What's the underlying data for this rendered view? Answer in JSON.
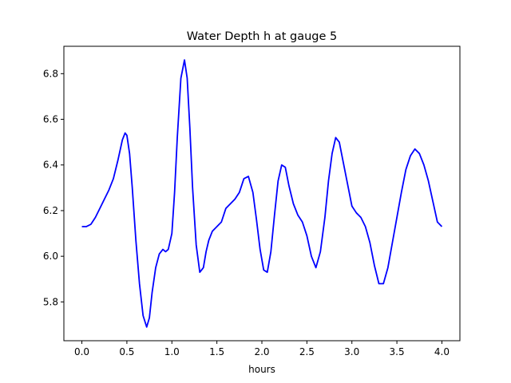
{
  "chart_data": {
    "type": "line",
    "title": "Water Depth h at gauge 5",
    "xlabel": "hours",
    "ylabel": "",
    "xlim": [
      -0.2,
      4.2
    ],
    "ylim": [
      5.63,
      6.92
    ],
    "xticks": [
      0.0,
      0.5,
      1.0,
      1.5,
      2.0,
      2.5,
      3.0,
      3.5,
      4.0
    ],
    "xtick_labels": [
      "0.0",
      "0.5",
      "1.0",
      "1.5",
      "2.0",
      "2.5",
      "3.0",
      "3.5",
      "4.0"
    ],
    "yticks": [
      5.8,
      6.0,
      6.2,
      6.4,
      6.6,
      6.8
    ],
    "ytick_labels": [
      "5.8",
      "6.0",
      "6.2",
      "6.4",
      "6.6",
      "6.8"
    ],
    "grid": false,
    "series": [
      {
        "color": "#0000ff",
        "x": [
          0.0,
          0.05,
          0.1,
          0.15,
          0.2,
          0.25,
          0.3,
          0.35,
          0.4,
          0.45,
          0.48,
          0.5,
          0.53,
          0.56,
          0.6,
          0.64,
          0.68,
          0.72,
          0.75,
          0.78,
          0.82,
          0.86,
          0.9,
          0.93,
          0.96,
          1.0,
          1.03,
          1.06,
          1.1,
          1.14,
          1.17,
          1.2,
          1.23,
          1.27,
          1.31,
          1.35,
          1.38,
          1.41,
          1.45,
          1.5,
          1.55,
          1.6,
          1.65,
          1.7,
          1.75,
          1.8,
          1.85,
          1.9,
          1.94,
          1.98,
          2.02,
          2.06,
          2.1,
          2.14,
          2.18,
          2.22,
          2.26,
          2.3,
          2.35,
          2.4,
          2.45,
          2.5,
          2.55,
          2.6,
          2.65,
          2.7,
          2.74,
          2.78,
          2.82,
          2.86,
          2.9,
          2.95,
          3.0,
          3.05,
          3.1,
          3.15,
          3.2,
          3.25,
          3.3,
          3.35,
          3.4,
          3.45,
          3.5,
          3.55,
          3.6,
          3.65,
          3.7,
          3.75,
          3.8,
          3.85,
          3.9,
          3.95,
          4.0
        ],
        "y": [
          6.13,
          6.13,
          6.14,
          6.17,
          6.21,
          6.25,
          6.29,
          6.34,
          6.42,
          6.51,
          6.54,
          6.53,
          6.45,
          6.3,
          6.07,
          5.88,
          5.74,
          5.69,
          5.73,
          5.84,
          5.95,
          6.01,
          6.03,
          6.02,
          6.03,
          6.1,
          6.28,
          6.52,
          6.78,
          6.86,
          6.78,
          6.56,
          6.3,
          6.05,
          5.93,
          5.95,
          6.02,
          6.07,
          6.11,
          6.13,
          6.15,
          6.21,
          6.23,
          6.25,
          6.28,
          6.34,
          6.35,
          6.28,
          6.16,
          6.03,
          5.94,
          5.93,
          6.02,
          6.18,
          6.33,
          6.4,
          6.39,
          6.31,
          6.23,
          6.18,
          6.15,
          6.09,
          6.0,
          5.95,
          6.02,
          6.17,
          6.33,
          6.45,
          6.52,
          6.5,
          6.42,
          6.32,
          6.22,
          6.19,
          6.17,
          6.13,
          6.06,
          5.96,
          5.88,
          5.88,
          5.95,
          6.06,
          6.17,
          6.28,
          6.38,
          6.44,
          6.47,
          6.45,
          6.4,
          6.33,
          6.24,
          6.15,
          6.13
        ]
      }
    ]
  }
}
